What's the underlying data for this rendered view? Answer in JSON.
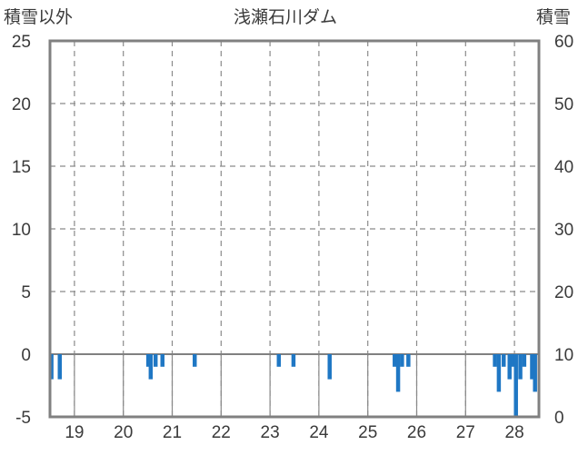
{
  "chart_data": {
    "type": "bar",
    "title": "浅瀬石川ダム",
    "y_left_label": "積雪以外",
    "y_right_label": "積雪",
    "y_left_range": [
      -5,
      25
    ],
    "y_left_ticks": [
      25,
      20,
      15,
      10,
      5,
      0,
      -5
    ],
    "y_right_range": [
      0,
      60
    ],
    "y_right_ticks": [
      60,
      50,
      40,
      30,
      20,
      10,
      0
    ],
    "x_range": [
      18.5,
      28.5
    ],
    "x_ticks": [
      "19",
      "20",
      "21",
      "22",
      "23",
      "24",
      "25",
      "26",
      "27",
      "28"
    ],
    "grid": true,
    "bar_color": "#1f77c4",
    "series": [
      {
        "axis": "left",
        "bar_width_hours": 2,
        "points": [
          {
            "t": 18.53,
            "v": -2
          },
          {
            "t": 18.7,
            "v": -2
          },
          {
            "t": 20.51,
            "v": -1
          },
          {
            "t": 20.56,
            "v": -2
          },
          {
            "t": 20.66,
            "v": -1
          },
          {
            "t": 20.8,
            "v": -1
          },
          {
            "t": 21.46,
            "v": -1
          },
          {
            "t": 23.18,
            "v": -1
          },
          {
            "t": 23.48,
            "v": -1
          },
          {
            "t": 24.22,
            "v": -2
          },
          {
            "t": 25.55,
            "v": -1
          },
          {
            "t": 25.62,
            "v": -3
          },
          {
            "t": 25.7,
            "v": -1
          },
          {
            "t": 25.83,
            "v": -1
          },
          {
            "t": 27.6,
            "v": -1
          },
          {
            "t": 27.68,
            "v": -3
          },
          {
            "t": 27.78,
            "v": -1
          },
          {
            "t": 27.9,
            "v": -2
          },
          {
            "t": 27.97,
            "v": -1
          },
          {
            "t": 28.03,
            "v": -5
          },
          {
            "t": 28.12,
            "v": -2
          },
          {
            "t": 28.2,
            "v": -1
          },
          {
            "t": 28.36,
            "v": -2
          },
          {
            "t": 28.42,
            "v": -3
          }
        ]
      }
    ]
  }
}
